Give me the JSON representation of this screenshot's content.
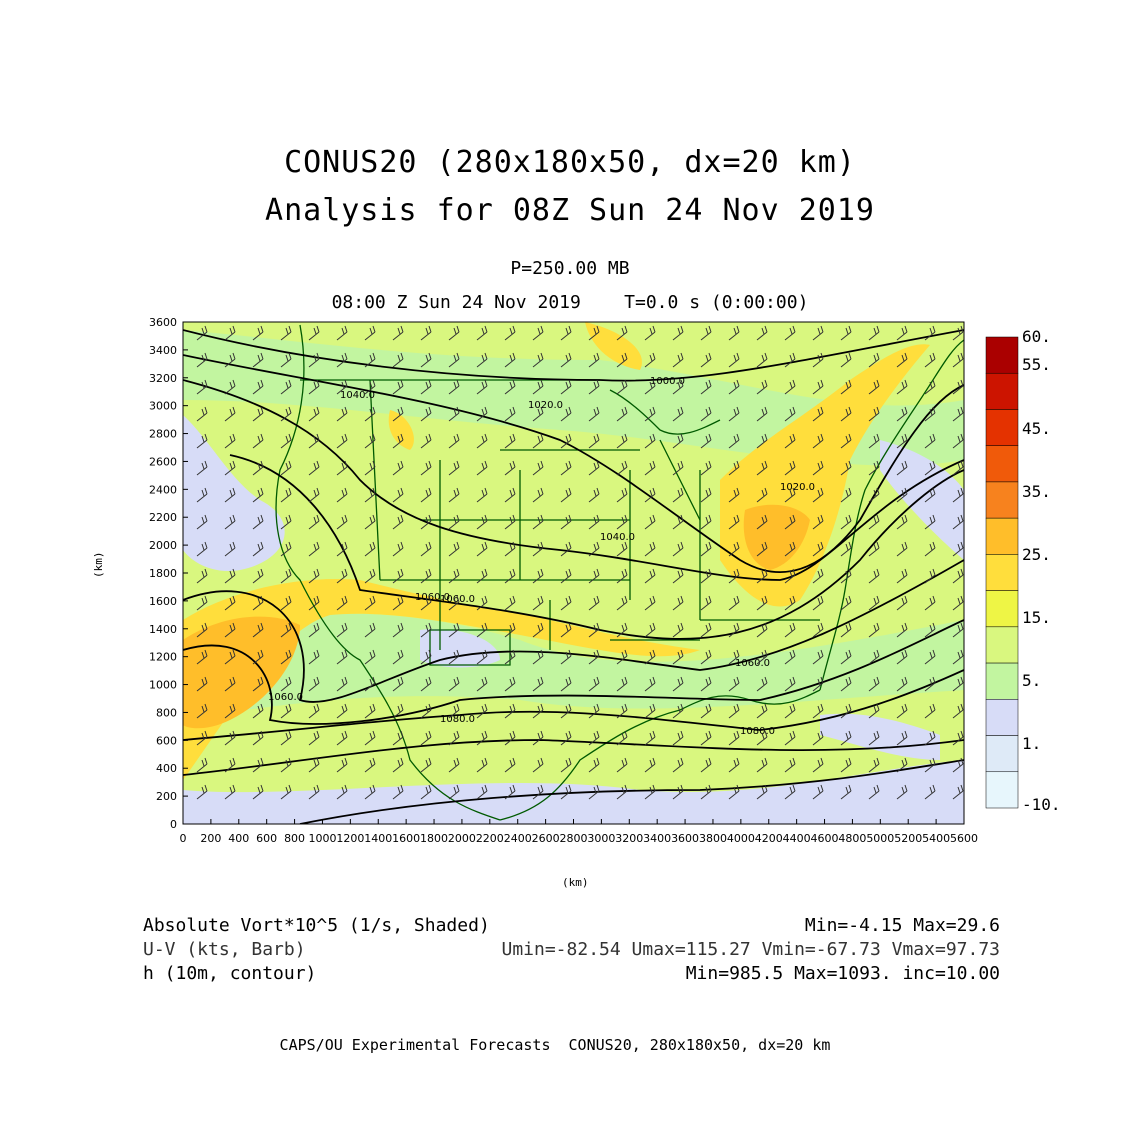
{
  "header": {
    "title_line1": "CONUS20 (280x180x50, dx=20 km)",
    "title_line2": "Analysis for 08Z Sun 24 Nov 2019",
    "level": "P=250.00 MB",
    "time": "08:00 Z Sun 24 Nov 2019    T=0.0 s (0:00:00)"
  },
  "axes": {
    "xlabel": "(km)",
    "ylabel": "(km)",
    "xticks": [
      "0",
      "200",
      "400",
      "600",
      "800",
      "1000",
      "1200",
      "1400",
      "1600",
      "1800",
      "2000",
      "2200",
      "2400",
      "2600",
      "2800",
      "3000",
      "3200",
      "3400",
      "3600",
      "3800",
      "4000",
      "4200",
      "4400",
      "4600",
      "4800",
      "5000",
      "5200",
      "5400",
      "5600"
    ],
    "yticks": [
      "0",
      "200",
      "400",
      "600",
      "800",
      "1000",
      "1200",
      "1400",
      "1600",
      "1800",
      "2000",
      "2200",
      "2400",
      "2600",
      "2800",
      "3000",
      "3200",
      "3400",
      "3600"
    ]
  },
  "colorbar": {
    "labels": [
      "60.",
      "55.",
      "45.",
      "35.",
      "25.",
      "15.",
      "5.",
      "1.",
      "-10."
    ],
    "colors": [
      "#aa0000",
      "#cc1400",
      "#e43200",
      "#f05a0a",
      "#f7821e",
      "#ffbe2a",
      "#ffde3c",
      "#eef545",
      "#d9f77f",
      "#c2f5a0",
      "#d7dcf7",
      "#deeaf7",
      "#e7f6fc"
    ]
  },
  "contours": {
    "labels": [
      "1000.0",
      "1020.0",
      "1040.0",
      "1040.0",
      "1060.0",
      "1060.0",
      "1060.0",
      "1060.0",
      "1080.0",
      "1080.0",
      "1020.0"
    ]
  },
  "footer": {
    "line1_left": "Absolute Vort*10^5 (1/s, Shaded)",
    "line1_right": "Min=-4.15 Max=29.6",
    "line2_left": "U-V (kts, Barb)",
    "line2_right": "Umin=-82.54 Umax=115.27 Vmin=-67.73 Vmax=97.73",
    "line3_left": "h (10m, contour)",
    "line3_right": "Min=985.5 Max=1093. inc=10.00",
    "credit": "CAPS/OU Experimental Forecasts  CONUS20, 280x180x50, dx=20 km"
  }
}
